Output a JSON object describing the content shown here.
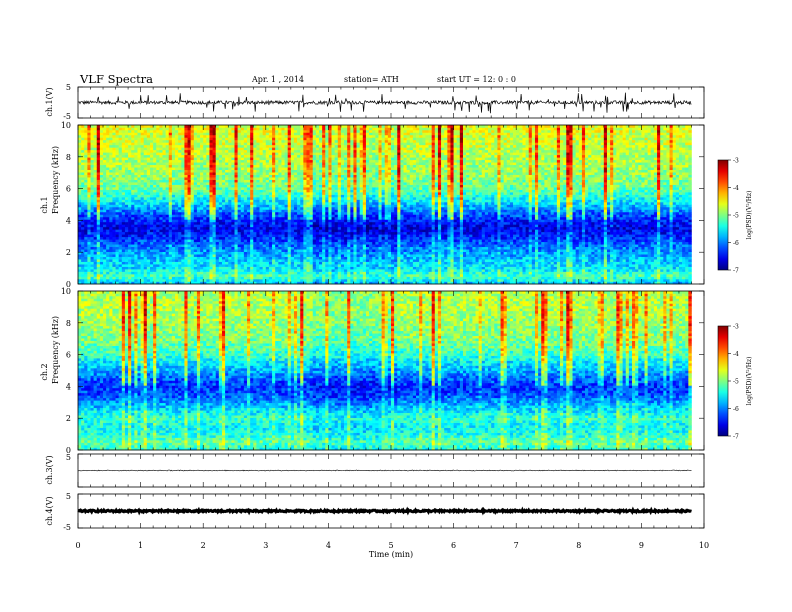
{
  "header": {
    "title": "VLF  Spectra",
    "date": "Apr. 1   , 2014",
    "station": "station= ATH",
    "start": "start  UT  =    12: 0   : 0"
  },
  "chart_data": [
    {
      "type": "line",
      "panel": "ch1-waveform",
      "ylabel": "ch.1(V)",
      "ylim": [
        -5,
        5
      ],
      "yticks": [
        "5",
        "-5"
      ],
      "xlim": [
        0,
        10
      ],
      "data_end_min": 9.8,
      "baseline": 0,
      "note_values_estimated": "noisy waveform around 0 V with spikes up to about ±3 V"
    },
    {
      "type": "heatmap",
      "panel": "ch1-spectrogram",
      "ylabel_outer": "ch.1",
      "ylabel": "Frequency  (kHz)",
      "ylim": [
        0,
        10
      ],
      "yticks": [
        "0",
        "2",
        "4",
        "6",
        "8",
        "10"
      ],
      "xlim": [
        0,
        10
      ],
      "data_end_min": 9.8,
      "colorbar": {
        "label": "log(PSD)(V²/Hz)",
        "range": [
          -7,
          -3
        ],
        "ticks": [
          "-3",
          "-4",
          "-5",
          "-6",
          "-7"
        ]
      },
      "profile_khz_to_logpsd": [
        [
          0,
          -5.8
        ],
        [
          0.5,
          -5.2
        ],
        [
          1,
          -5.6
        ],
        [
          1.5,
          -5.7
        ],
        [
          2,
          -5.9
        ],
        [
          2.5,
          -6.1
        ],
        [
          3,
          -6.4
        ],
        [
          3.5,
          -6.6
        ],
        [
          4,
          -6.4
        ],
        [
          4.5,
          -6.1
        ],
        [
          5,
          -5.7
        ],
        [
          5.5,
          -5.4
        ],
        [
          6,
          -5.1
        ],
        [
          7,
          -4.9
        ],
        [
          8,
          -4.8
        ],
        [
          9,
          -4.7
        ],
        [
          10,
          -4.6
        ]
      ]
    },
    {
      "type": "heatmap",
      "panel": "ch2-spectrogram",
      "ylabel_outer": "ch.2",
      "ylabel": "Frequency  (kHz)",
      "ylim": [
        0,
        10
      ],
      "yticks": [
        "0",
        "2",
        "4",
        "6",
        "8",
        "10"
      ],
      "xlim": [
        0,
        10
      ],
      "data_end_min": 9.8,
      "colorbar": {
        "label": "log(PSD)(V²/Hz)",
        "range": [
          -7,
          -3
        ],
        "ticks": [
          "-3",
          "-4",
          "-5",
          "-6",
          "-7"
        ]
      },
      "profile_khz_to_logpsd": [
        [
          0,
          -5.4
        ],
        [
          0.5,
          -5.1
        ],
        [
          1,
          -5.4
        ],
        [
          1.5,
          -5.5
        ],
        [
          2,
          -5.3
        ],
        [
          2.5,
          -5.6
        ],
        [
          3,
          -5.9
        ],
        [
          3.5,
          -6.2
        ],
        [
          4,
          -6.3
        ],
        [
          4.5,
          -6.1
        ],
        [
          5,
          -5.8
        ],
        [
          5.5,
          -5.6
        ],
        [
          6,
          -5.3
        ],
        [
          7,
          -5.0
        ],
        [
          8,
          -4.9
        ],
        [
          9,
          -4.8
        ],
        [
          10,
          -4.8
        ]
      ]
    },
    {
      "type": "line",
      "panel": "ch3-waveform",
      "ylabel": "ch.3(V)",
      "ylim": [
        -5,
        5
      ],
      "yticks": [
        "5"
      ],
      "xlim": [
        0,
        10
      ],
      "data_end_min": 9.8,
      "baseline": 0
    },
    {
      "type": "line",
      "panel": "ch4-waveform",
      "ylabel": "ch.4(V)",
      "ylim": [
        -5,
        5
      ],
      "yticks": [
        "5",
        "-5"
      ],
      "xlim": [
        0,
        10
      ],
      "data_end_min": 9.8,
      "baseline": 0,
      "xlabel": "Time  (min)",
      "xticks": [
        "0",
        "1",
        "2",
        "3",
        "4",
        "5",
        "6",
        "7",
        "8",
        "9",
        "10"
      ]
    }
  ]
}
